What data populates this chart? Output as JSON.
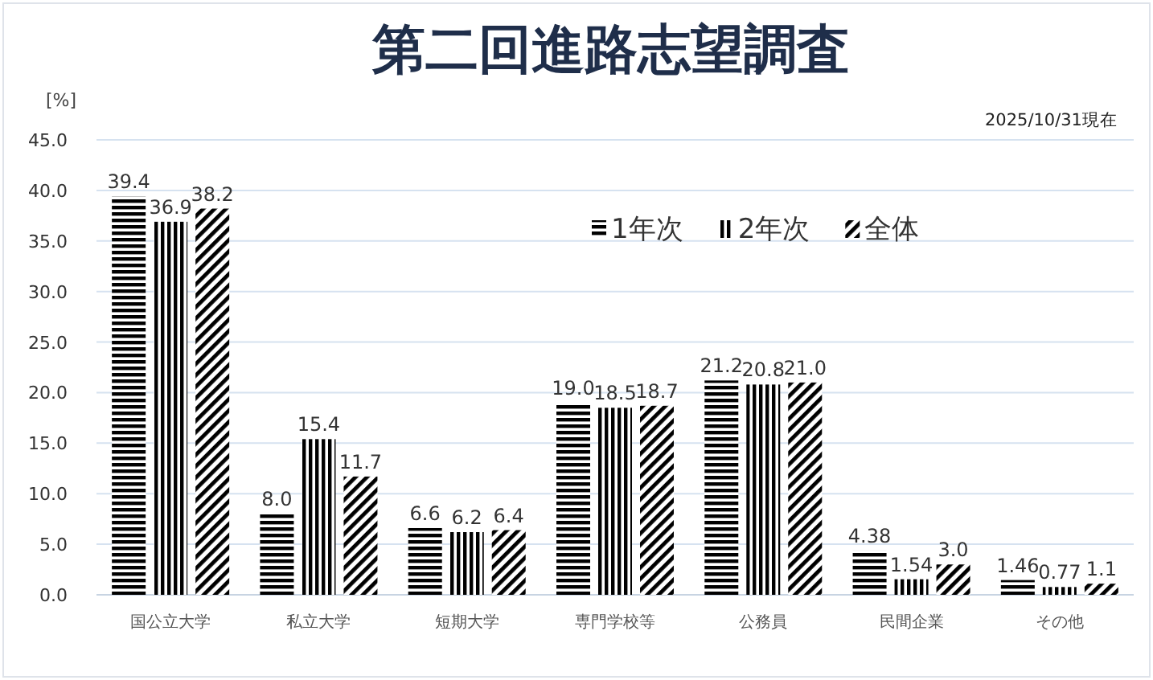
{
  "chart_data": {
    "type": "bar",
    "title": "第二回進路志望調査",
    "ylabel": "[%]",
    "annotations": [
      "2025/10/31現在"
    ],
    "categories": [
      "国公立大学",
      "私立大学",
      "短期大学",
      "専門学校等",
      "公務員",
      "民間企業",
      "その他"
    ],
    "series": [
      {
        "name": "1年次",
        "color": "#000000",
        "values": [
          39.4,
          8.0,
          6.6,
          19.0,
          21.2,
          4.38,
          1.46
        ],
        "value_labels": [
          "39.4",
          "8.0",
          "6.6",
          "19.0",
          "21.2",
          "4.38",
          "1.46"
        ]
      },
      {
        "name": "2年次",
        "color": "#000000",
        "values": [
          36.9,
          15.4,
          6.2,
          18.5,
          20.8,
          1.54,
          0.77
        ],
        "value_labels": [
          "36.9",
          "15.4",
          "6.2",
          "18.5",
          "20.8",
          "1.54",
          "0.77"
        ]
      },
      {
        "name": "全体",
        "color": "#000000",
        "values": [
          38.2,
          11.7,
          6.4,
          18.7,
          21.0,
          3.0,
          1.1
        ],
        "value_labels": [
          "38.2",
          "11.7",
          "6.4",
          "18.7",
          "21.0",
          "3.0",
          "1.1"
        ]
      }
    ],
    "ylim": [
      0,
      45
    ],
    "yticks": [
      {
        "value": 0,
        "label": "0.0"
      },
      {
        "value": 5,
        "label": "5.0"
      },
      {
        "value": 10,
        "label": "10.0"
      },
      {
        "value": 15,
        "label": "15.0"
      },
      {
        "value": 20,
        "label": "20.0"
      },
      {
        "value": 25,
        "label": "25.0"
      },
      {
        "value": 30,
        "label": "30.0"
      },
      {
        "value": 35,
        "label": "35.0"
      },
      {
        "value": 40,
        "label": "40.0"
      },
      {
        "value": 45,
        "label": "45.0"
      }
    ],
    "grid": "y",
    "legend": "top"
  }
}
